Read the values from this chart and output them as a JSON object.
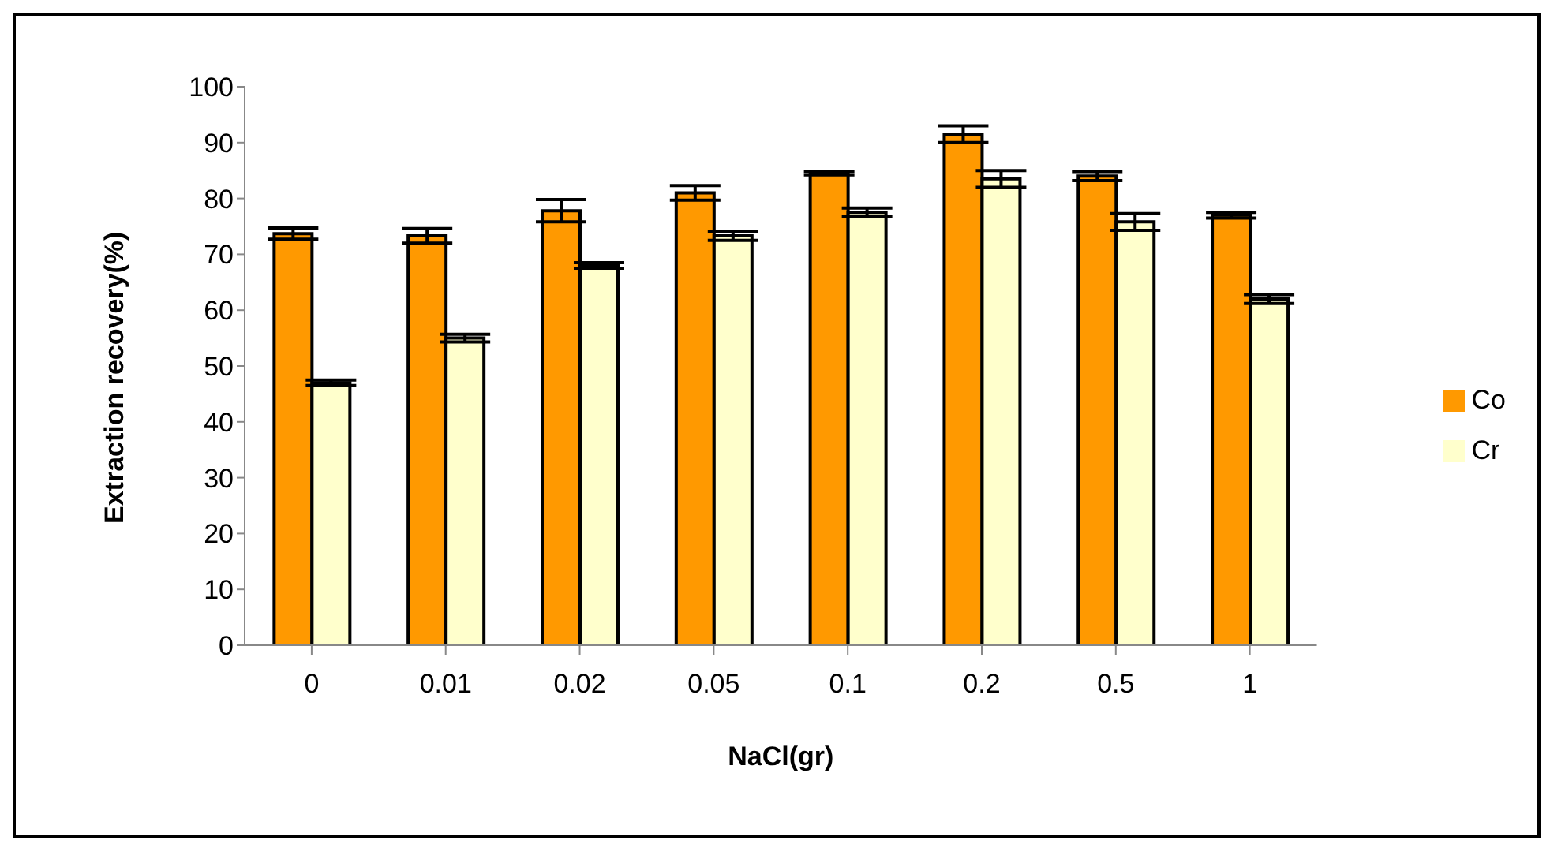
{
  "chart_data": {
    "type": "bar",
    "xlabel": "NaCl(gr)",
    "ylabel": "Extraction recovery(%)",
    "categories": [
      "0",
      "0.01",
      "0.02",
      "0.05",
      "0.1",
      "0.2",
      "0.5",
      "1"
    ],
    "series": [
      {
        "name": "Co",
        "color": "#ff9900",
        "values": [
          73.7,
          73.3,
          77.8,
          81,
          84.5,
          91.5,
          84,
          77
        ],
        "errors": [
          1,
          1.3,
          2,
          1.3,
          0.3,
          1.5,
          0.8,
          0.5
        ]
      },
      {
        "name": "Cr",
        "color": "#ffffcc",
        "values": [
          47,
          55,
          68,
          73.3,
          77.5,
          83.5,
          75.8,
          62
        ],
        "errors": [
          0.5,
          0.7,
          0.5,
          0.8,
          0.8,
          1.5,
          1.5,
          0.8
        ]
      }
    ],
    "ylim": [
      0,
      100
    ],
    "yticks": [
      0,
      10,
      20,
      30,
      40,
      50,
      60,
      70,
      80,
      90,
      100
    ],
    "grid": false,
    "legend": "right"
  }
}
